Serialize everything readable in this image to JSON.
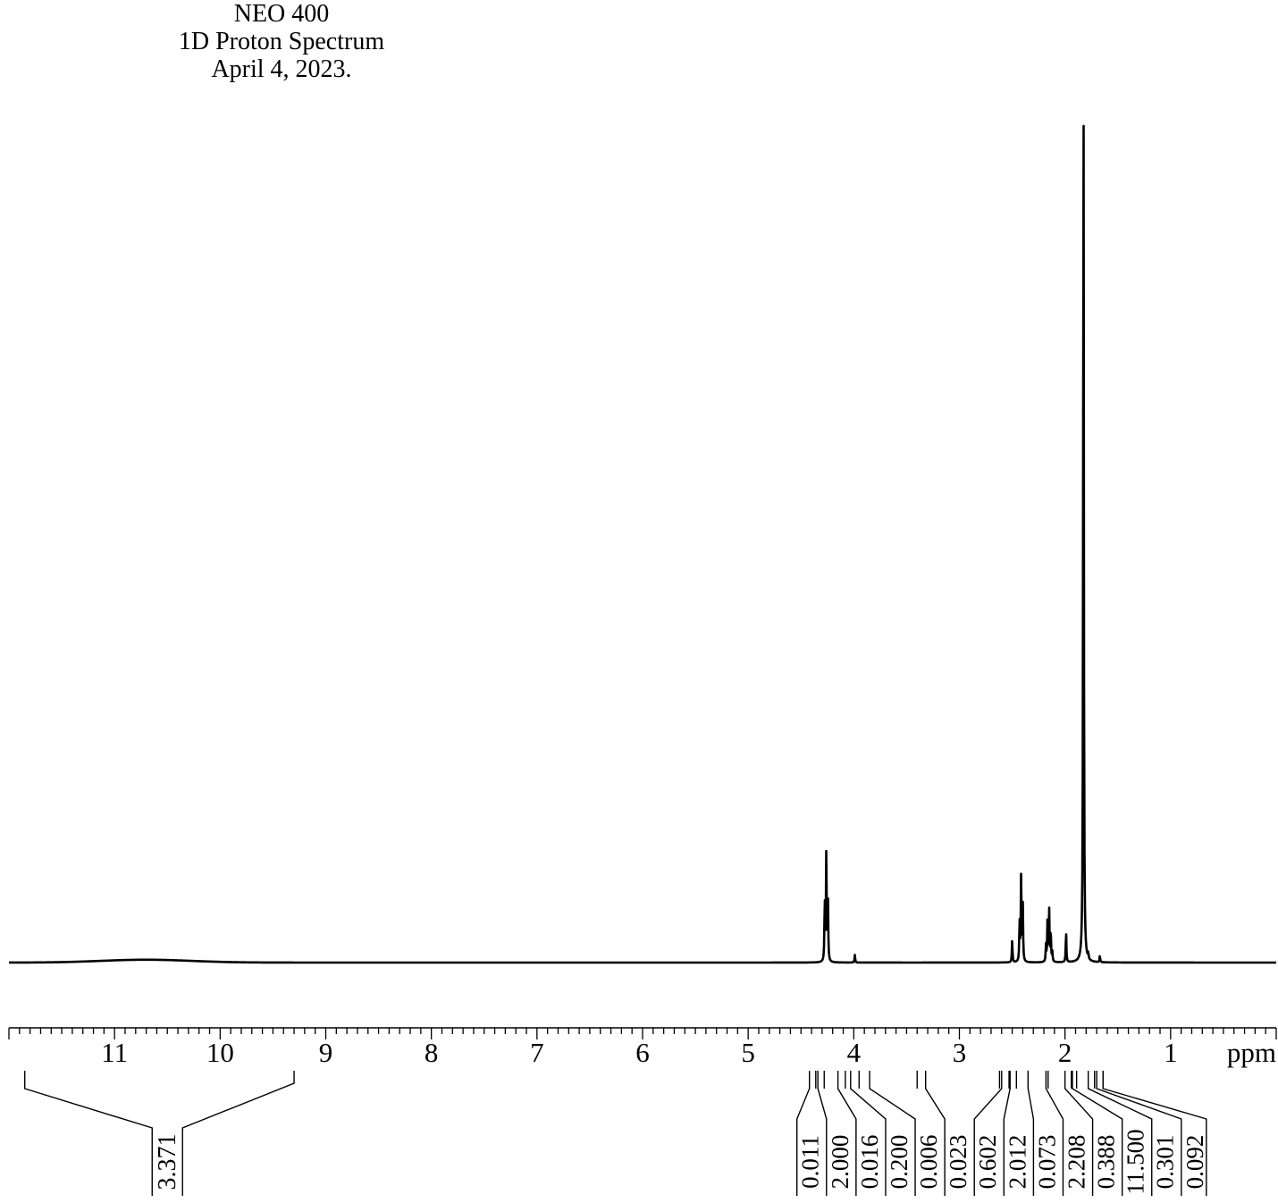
{
  "header": {
    "line1": "NEO 400",
    "line2": "1D Proton Spectrum",
    "line3": "April 4, 2023."
  },
  "chart_data": {
    "type": "line",
    "title": "NEO 400 1D Proton Spectrum April 4, 2023.",
    "xlabel": "ppm",
    "ylabel": "",
    "xlim": [
      12.0,
      0.0
    ],
    "x_reversed": true,
    "x_ticks": [
      11,
      10,
      9,
      8,
      7,
      6,
      5,
      4,
      3,
      2,
      1
    ],
    "ylim": [
      0,
      1.0
    ],
    "grid": false,
    "legend": "none",
    "color": "#000000",
    "peaks": [
      {
        "ppm": 4.26,
        "height": 0.118
      },
      {
        "ppm": 4.245,
        "height": 0.066
      },
      {
        "ppm": 4.275,
        "height": 0.066
      },
      {
        "ppm": 3.99,
        "height": 0.008
      },
      {
        "ppm": 2.5,
        "height": 0.023
      },
      {
        "ppm": 2.43,
        "height": 0.044
      },
      {
        "ppm": 2.415,
        "height": 0.096
      },
      {
        "ppm": 2.4,
        "height": 0.062
      },
      {
        "ppm": 2.18,
        "height": 0.018
      },
      {
        "ppm": 2.165,
        "height": 0.048
      },
      {
        "ppm": 2.15,
        "height": 0.054
      },
      {
        "ppm": 2.135,
        "height": 0.033
      },
      {
        "ppm": 2.12,
        "height": 0.01
      },
      {
        "ppm": 1.99,
        "height": 0.033
      },
      {
        "ppm": 1.825,
        "height": 1.0
      },
      {
        "ppm": 1.78,
        "height": 0.006
      },
      {
        "ppm": 1.67,
        "height": 0.007
      }
    ],
    "broad_peaks": [
      {
        "ppm": 10.7,
        "height": 0.003,
        "width": 1.2
      }
    ],
    "integrals": [
      {
        "value": "3.371",
        "from": 11.85,
        "to": 9.3,
        "label_ppm": 10.5
      },
      {
        "value": "0.011",
        "from": 4.42,
        "to": 4.36,
        "label_ppm": 4.42
      },
      {
        "value": "2.000",
        "from": 4.34,
        "to": 4.28,
        "label_ppm": 4.14
      },
      {
        "value": "0.016",
        "from": 4.15,
        "to": 4.08,
        "label_ppm": 3.86
      },
      {
        "value": "0.200",
        "from": 4.03,
        "to": 3.95,
        "label_ppm": 3.58
      },
      {
        "value": "0.006",
        "from": 3.85,
        "to": 3.4,
        "label_ppm": 3.3
      },
      {
        "value": "0.023",
        "from": 3.32,
        "to": 2.62,
        "label_ppm": 3.02
      },
      {
        "value": "0.602",
        "from": 2.6,
        "to": 2.53,
        "label_ppm": 2.74
      },
      {
        "value": "2.012",
        "from": 2.52,
        "to": 2.46,
        "label_ppm": 2.46
      },
      {
        "value": "0.073",
        "from": 2.35,
        "to": 2.35,
        "label_ppm": 2.18
      },
      {
        "value": "2.208",
        "from": 2.18,
        "to": 2.16,
        "label_ppm": 1.9
      },
      {
        "value": "0.388",
        "from": 2.0,
        "to": 1.94,
        "label_ppm": 1.62
      },
      {
        "value": "11.500",
        "from": 1.93,
        "to": 1.89,
        "label_ppm": 1.34
      },
      {
        "value": "0.301",
        "from": 1.78,
        "to": 1.72,
        "label_ppm": 1.06
      },
      {
        "value": "0.092",
        "from": 1.7,
        "to": 1.64,
        "label_ppm": 0.78
      }
    ]
  }
}
